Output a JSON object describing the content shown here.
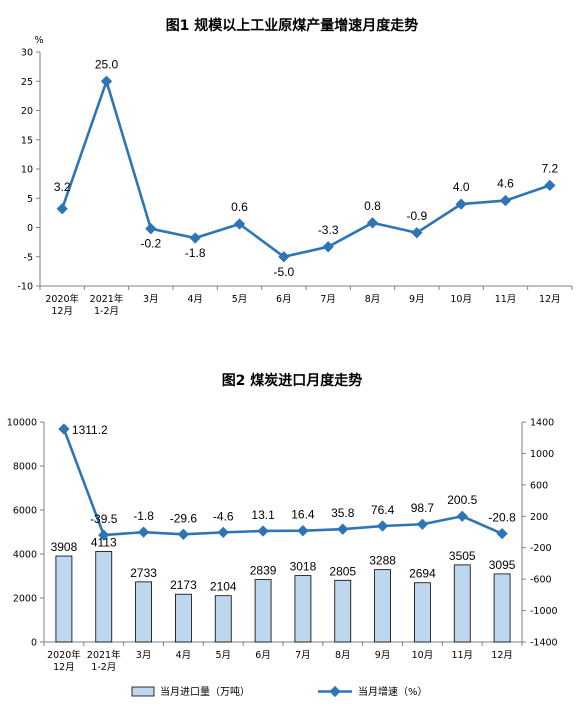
{
  "chart_data": [
    {
      "type": "line",
      "title": "图1  规模以上工业原煤产量增速月度走势",
      "ylabel": "%",
      "ylim": [
        -10,
        30
      ],
      "yticks": [
        30,
        25,
        20,
        15,
        10,
        5,
        0,
        -5,
        -10
      ],
      "categories": [
        [
          "2020年",
          "12月"
        ],
        [
          "2021年",
          "1-2月"
        ],
        [
          "3月"
        ],
        [
          "4月"
        ],
        [
          "5月"
        ],
        [
          "6月"
        ],
        [
          "7月"
        ],
        [
          "8月"
        ],
        [
          "9月"
        ],
        [
          "10月"
        ],
        [
          "11月"
        ],
        [
          "12月"
        ]
      ],
      "series": [
        {
          "values": [
            3.2,
            25.0,
            -0.2,
            -1.8,
            0.6,
            -5.0,
            -3.3,
            0.8,
            -0.9,
            4.0,
            4.6,
            7.2
          ],
          "labels": [
            "3.2",
            "25.0",
            "-0.2",
            "-1.8",
            "0.6",
            "-5.0",
            "-3.3",
            "0.8",
            "-0.9",
            "4.0",
            "4.6",
            "7.2"
          ],
          "color": "#2E75B6"
        }
      ],
      "grid": false
    },
    {
      "type": "bar+line",
      "title": "图2  煤炭进口月度走势",
      "categories": [
        [
          "2020年",
          "12月"
        ],
        [
          "2021年",
          "1-2月"
        ],
        [
          "3月"
        ],
        [
          "4月"
        ],
        [
          "5月"
        ],
        [
          "6月"
        ],
        [
          "7月"
        ],
        [
          "8月"
        ],
        [
          "9月"
        ],
        [
          "10月"
        ],
        [
          "11月"
        ],
        [
          "12月"
        ]
      ],
      "left_axis": {
        "ylim": [
          0,
          10000
        ],
        "yticks": [
          10000,
          8000,
          6000,
          4000,
          2000,
          0
        ]
      },
      "right_axis": {
        "ylim": [
          -1400,
          1400
        ],
        "yticks": [
          1400,
          1000,
          600,
          200,
          -200,
          -600,
          -1000,
          -1400
        ]
      },
      "series": [
        {
          "name": "当月进口量（万吨）",
          "type": "bar",
          "axis": "left",
          "values": [
            3908,
            4113,
            2733,
            2173,
            2104,
            2839,
            3018,
            2805,
            3288,
            2694,
            3505,
            3095
          ],
          "labels": [
            "3908",
            "4113",
            "2733",
            "2173",
            "2104",
            "2839",
            "3018",
            "2805",
            "3288",
            "2694",
            "3505",
            "3095"
          ],
          "color": "#BDD7EE"
        },
        {
          "name": "当月增速（%）",
          "type": "line",
          "axis": "right",
          "values": [
            1311.2,
            -39.5,
            -1.8,
            -29.6,
            -4.6,
            13.1,
            16.4,
            35.8,
            76.4,
            98.7,
            200.5,
            -20.8
          ],
          "labels": [
            "1311.2",
            "-39.5",
            "-1.8",
            "-29.6",
            "-4.6",
            "13.1",
            "16.4",
            "35.8",
            "76.4",
            "98.7",
            "200.5",
            "-20.8"
          ],
          "color": "#2E75B6"
        }
      ],
      "legend": "bottom",
      "grid": false
    }
  ]
}
